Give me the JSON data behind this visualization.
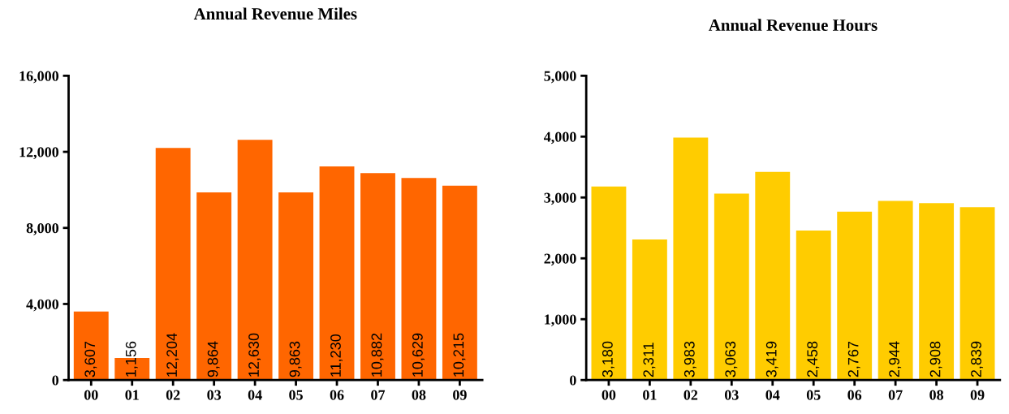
{
  "chart_data": [
    {
      "type": "bar",
      "title": "Annual Revenue Miles",
      "categories": [
        "00",
        "01",
        "02",
        "03",
        "04",
        "05",
        "06",
        "07",
        "08",
        "09"
      ],
      "values": [
        3607,
        1156,
        12204,
        9864,
        12630,
        9863,
        11230,
        10882,
        10629,
        10215
      ],
      "value_labels": [
        "3,607",
        "1,156",
        "12,204",
        "9,864",
        "12,630",
        "9,863",
        "11,230",
        "10,882",
        "10,629",
        "10,215"
      ],
      "color": "#ff6600",
      "ylim": [
        0,
        16000
      ],
      "yticks": [
        0,
        {
          "value": 4000,
          "label": "4,000"
        },
        {
          "value": 8000,
          "label": "8,000"
        },
        {
          "value": 12000,
          "label": "12,000"
        },
        {
          "value": 16000,
          "label": "16,000"
        }
      ],
      "grid": false,
      "legend": false
    },
    {
      "type": "bar",
      "title": "Annual Revenue Hours",
      "categories": [
        "00",
        "01",
        "02",
        "03",
        "04",
        "05",
        "06",
        "07",
        "08",
        "09"
      ],
      "values": [
        3180,
        2311,
        3983,
        3063,
        3419,
        2458,
        2767,
        2944,
        2908,
        2839
      ],
      "value_labels": [
        "3,180",
        "2,311",
        "3,983",
        "3,063",
        "3,419",
        "2,458",
        "2,767",
        "2,944",
        "2,908",
        "2,839"
      ],
      "color": "#ffcc00",
      "ylim": [
        0,
        5000
      ],
      "yticks": [
        0,
        {
          "value": 1000,
          "label": "1,000"
        },
        {
          "value": 2000,
          "label": "2,000"
        },
        {
          "value": 3000,
          "label": "3,000"
        },
        {
          "value": 4000,
          "label": "4,000"
        },
        {
          "value": 5000,
          "label": "5,000"
        }
      ],
      "grid": false,
      "legend": false
    }
  ]
}
